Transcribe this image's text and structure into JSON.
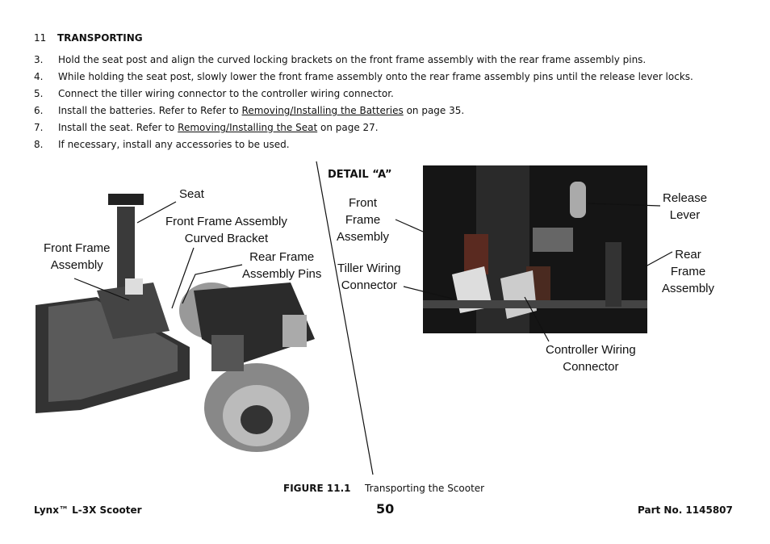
{
  "header": {
    "number": "11",
    "title": "TRANSPORTING"
  },
  "steps": [
    {
      "number": "3.",
      "text": "Hold the seat post and align the curved locking brackets on the front frame assembly with the rear frame assembly pins."
    },
    {
      "number": "4.",
      "text": "While holding the seat post, slowly lower the front frame assembly onto the rear frame assembly pins until the release lever locks."
    },
    {
      "number": "5.",
      "text": "Connect the tiller wiring connector to the controller wiring connector."
    },
    {
      "number": "6.",
      "text": "Install the batteries. Refer to Refer to ",
      "link": "Removing/Installing the Batteries",
      "after": " on page 35."
    },
    {
      "number": "7.",
      "text": "Install the seat. Refer to ",
      "link": "Removing/Installing the Seat",
      "after": " on page 27."
    },
    {
      "number": "8.",
      "text": "If necessary, install any accessories to be used."
    }
  ],
  "figure": {
    "left_labels": {
      "seat": [
        "Seat"
      ],
      "curved_bracket": [
        "Front Frame Assembly",
        "Curved Bracket"
      ],
      "front_frame": [
        "Front Frame",
        "Assembly"
      ],
      "rear_pins": [
        "Rear Frame",
        "Assembly Pins"
      ]
    },
    "detail_title": "DETAIL “A”",
    "detail_labels": {
      "front_frame": [
        "Front",
        "Frame",
        "Assembly"
      ],
      "tiller_wiring": [
        "Tiller Wiring",
        "Connector"
      ],
      "release_lever": [
        "Release",
        "Lever"
      ],
      "rear_frame": [
        "Rear",
        "Frame",
        "Assembly"
      ],
      "controller_wiring": [
        "Controller Wiring",
        "Connector"
      ]
    },
    "caption_number": "FIGURE 11.1",
    "caption_text": "Transporting the Scooter"
  },
  "footer": {
    "product": "Lynx™ L-3X Scooter",
    "page": "50",
    "part": "Part No. 1145807"
  }
}
